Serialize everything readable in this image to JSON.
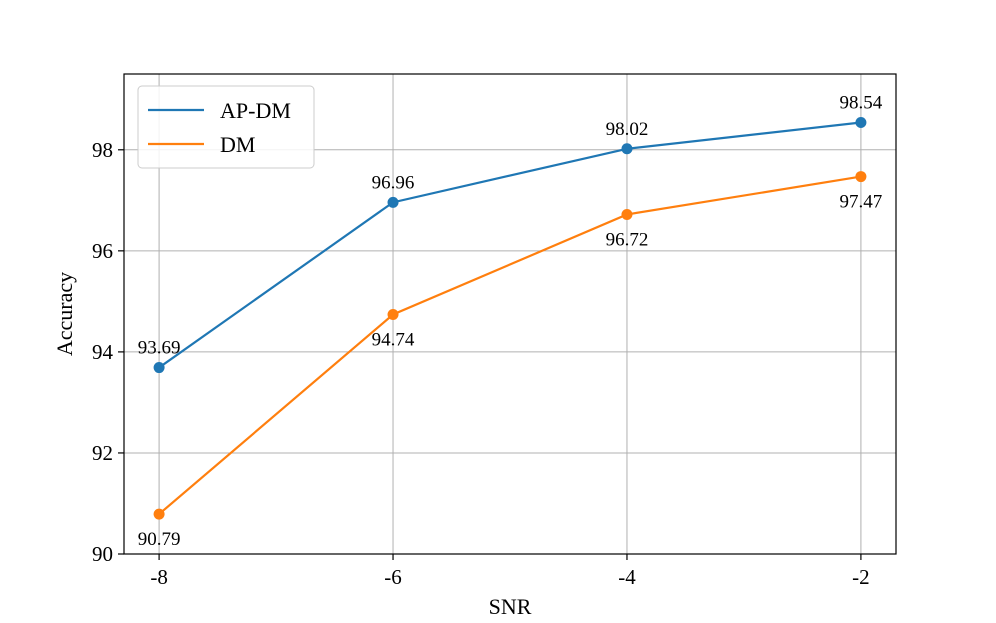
{
  "chart_data": {
    "type": "line",
    "title": "",
    "xlabel": "SNR",
    "ylabel": "Accuracy",
    "x": [
      -8,
      -6,
      -4,
      -2
    ],
    "x_tick_labels": [
      "-8",
      "-6",
      "-4",
      "-2"
    ],
    "y_ticks": [
      90,
      92,
      94,
      96,
      98
    ],
    "xlim": [
      -8.3,
      -1.7
    ],
    "ylim": [
      90,
      99.5
    ],
    "grid": true,
    "legend_position": "top-left",
    "series": [
      {
        "name": "AP-DM",
        "values": [
          93.69,
          96.96,
          98.02,
          98.54
        ],
        "data_labels": [
          "93.69",
          "96.96",
          "98.02",
          "98.54"
        ],
        "color": "#1f77b4",
        "label_placement": "above"
      },
      {
        "name": "DM",
        "values": [
          90.79,
          94.74,
          96.72,
          97.47
        ],
        "data_labels": [
          "90.79",
          "94.74",
          "96.72",
          "97.47"
        ],
        "color": "#ff7f0e",
        "label_placement": "below"
      }
    ]
  }
}
